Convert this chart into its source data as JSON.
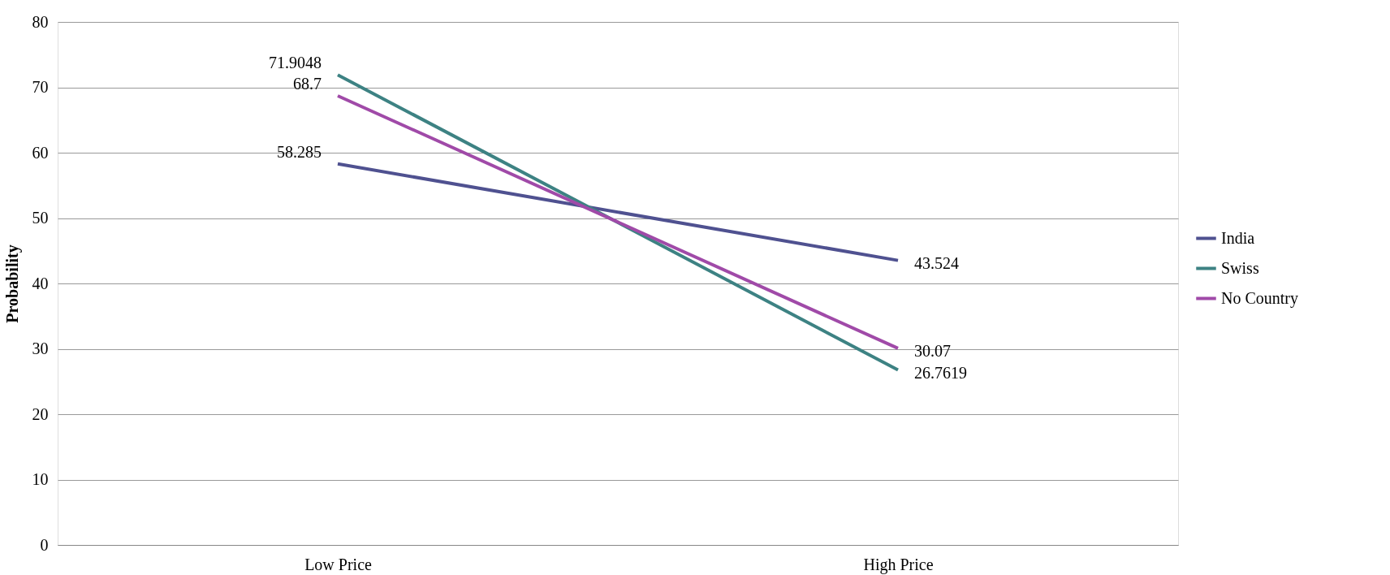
{
  "chart_data": {
    "type": "line",
    "ylabel": "Probability",
    "categories": [
      "Low Price",
      "High Price"
    ],
    "series": [
      {
        "name": "India",
        "color": "#4f5190",
        "values": [
          58.285,
          43.524
        ]
      },
      {
        "name": "Swiss",
        "color": "#3d8283",
        "values": [
          71.9048,
          26.7619
        ]
      },
      {
        "name": "No Country",
        "color": "#a04aa8",
        "values": [
          68.7,
          30.07
        ]
      }
    ],
    "ylim": [
      0,
      80
    ],
    "yticks": [
      0,
      10,
      20,
      30,
      40,
      50,
      60,
      70,
      80
    ],
    "grid": "y",
    "legend": "right",
    "data_labels": true,
    "marker": "none",
    "line_style": "solid"
  }
}
